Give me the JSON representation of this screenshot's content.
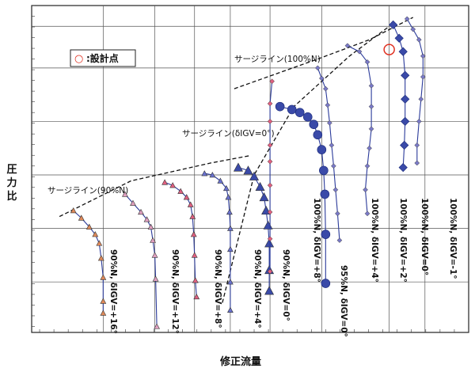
{
  "chart_data": {
    "type": "line",
    "xlabel": "修正流量",
    "ylabel": "圧力比",
    "xlim": [
      0,
      11
    ],
    "ylim": [
      0,
      11
    ],
    "grid": true,
    "legend": {
      "marker": "○",
      "label": ":設計点",
      "position": "top-left"
    },
    "design_point": {
      "x": 9.0,
      "y": 9.52
    },
    "surge_lines": [
      {
        "label": "サージライン(90%N)",
        "points": [
          [
            0.7,
            3.9
          ],
          [
            2.5,
            5.1
          ],
          [
            4.5,
            5.7
          ],
          [
            5.5,
            5.95
          ]
        ]
      },
      {
        "label": "サージライン(δIGV=0°)",
        "points": [
          [
            4.8,
            1.0
          ],
          [
            5.6,
            5.3
          ],
          [
            6.6,
            7.6
          ],
          [
            8.0,
            9.3
          ],
          [
            9.0,
            10.3
          ]
        ]
      },
      {
        "label": "サージライン(100%N)",
        "points": [
          [
            5.1,
            8.2
          ],
          [
            7.2,
            9.2
          ],
          [
            8.5,
            9.85
          ],
          [
            9.6,
            10.6
          ]
        ]
      }
    ],
    "series": [
      {
        "name": "90%N, δIGV=+16°",
        "color": "#e08a5a",
        "points": [
          [
            1.05,
            4.1
          ],
          [
            1.25,
            3.85
          ],
          [
            1.45,
            3.55
          ],
          [
            1.6,
            3.3
          ],
          [
            1.7,
            3.0
          ],
          [
            1.75,
            2.5
          ],
          [
            1.8,
            1.85
          ],
          [
            1.8,
            1.05
          ],
          [
            1.8,
            0.65
          ]
        ]
      },
      {
        "name": "90%N, δIGV=+12°",
        "color": "#e0a0c0",
        "points": [
          [
            2.35,
            4.65
          ],
          [
            2.55,
            4.35
          ],
          [
            2.75,
            4.05
          ],
          [
            2.9,
            3.8
          ],
          [
            3.0,
            3.55
          ],
          [
            3.05,
            3.1
          ],
          [
            3.1,
            2.6
          ],
          [
            3.12,
            1.8
          ],
          [
            3.15,
            0.2
          ]
        ]
      },
      {
        "name": "90%N, δIGV=+8°",
        "color": "#e06080",
        "points": [
          [
            3.35,
            5.05
          ],
          [
            3.55,
            4.95
          ],
          [
            3.75,
            4.75
          ],
          [
            3.9,
            4.55
          ],
          [
            4.0,
            4.3
          ],
          [
            4.05,
            3.9
          ],
          [
            4.08,
            3.3
          ],
          [
            4.1,
            2.6
          ],
          [
            4.12,
            1.75
          ],
          [
            4.15,
            1.2
          ]
        ]
      },
      {
        "name": "90%N, δIGV=+4°",
        "color": "#6a72d0",
        "points": [
          [
            4.35,
            5.35
          ],
          [
            4.55,
            5.3
          ],
          [
            4.75,
            5.1
          ],
          [
            4.9,
            4.85
          ],
          [
            4.95,
            4.55
          ],
          [
            4.98,
            4.05
          ],
          [
            5.0,
            3.5
          ],
          [
            5.0,
            2.8
          ],
          [
            5.0,
            1.7
          ],
          [
            5.0,
            0.75
          ]
        ]
      },
      {
        "name": "90%N, δIGV=0°",
        "color": "#3a4aa8",
        "big": true,
        "points": [
          [
            5.2,
            5.55
          ],
          [
            5.45,
            5.45
          ],
          [
            5.6,
            5.25
          ],
          [
            5.75,
            4.9
          ],
          [
            5.85,
            4.55
          ],
          [
            5.9,
            4.1
          ],
          [
            5.95,
            3.6
          ],
          [
            5.98,
            3.0
          ],
          [
            5.98,
            2.1
          ],
          [
            5.98,
            1.4
          ]
        ]
      },
      {
        "name": "100%N, δIGV=+8°",
        "color": "#e06080",
        "points": [
          [
            6.05,
            8.45
          ],
          [
            6.0,
            7.7
          ],
          [
            6.0,
            7.1
          ],
          [
            6.0,
            6.3
          ],
          [
            6.0,
            5.75
          ],
          [
            6.0,
            4.95
          ],
          [
            6.0,
            4.05
          ],
          [
            6.0,
            3.15
          ],
          [
            6.0,
            2.05
          ]
        ]
      },
      {
        "name": "95%N, δIGV=0°",
        "color": "#3a4aa8",
        "big": true,
        "points": [
          [
            6.25,
            7.6
          ],
          [
            6.55,
            7.5
          ],
          [
            6.75,
            7.4
          ],
          [
            6.95,
            7.25
          ],
          [
            7.1,
            7.0
          ],
          [
            7.2,
            6.65
          ],
          [
            7.3,
            6.15
          ],
          [
            7.35,
            5.45
          ],
          [
            7.38,
            4.65
          ],
          [
            7.4,
            3.3
          ],
          [
            7.4,
            1.65
          ]
        ]
      },
      {
        "name": "100%N, δIGV=+4°",
        "color": "#7a7ac8",
        "points": [
          [
            7.2,
            8.9
          ],
          [
            7.3,
            8.55
          ],
          [
            7.4,
            8.2
          ],
          [
            7.45,
            7.65
          ],
          [
            7.5,
            7.05
          ],
          [
            7.55,
            6.3
          ],
          [
            7.6,
            5.6
          ],
          [
            7.65,
            4.8
          ],
          [
            7.7,
            4.0
          ],
          [
            7.75,
            3.1
          ]
        ]
      },
      {
        "name": "100%N, δIGV=+2°",
        "color": "#7a7ac8",
        "points": [
          [
            7.95,
            9.65
          ],
          [
            8.25,
            9.45
          ],
          [
            8.45,
            9.1
          ],
          [
            8.55,
            8.3
          ],
          [
            8.55,
            7.6
          ],
          [
            8.55,
            6.85
          ],
          [
            8.5,
            6.2
          ],
          [
            8.45,
            5.6
          ],
          [
            8.4,
            4.8
          ],
          [
            8.45,
            4.0
          ]
        ]
      },
      {
        "name": "100%N, δIGV=0°",
        "color": "#3a4aa8",
        "big": true,
        "points": [
          [
            9.1,
            10.35
          ],
          [
            9.25,
            9.9
          ],
          [
            9.35,
            9.45
          ],
          [
            9.4,
            8.65
          ],
          [
            9.4,
            7.85
          ],
          [
            9.4,
            7.1
          ],
          [
            9.38,
            6.3
          ],
          [
            9.35,
            5.55
          ]
        ]
      },
      {
        "name": "100%N, δIGV=-1°",
        "color": "#7a7ac8",
        "points": [
          [
            9.45,
            10.55
          ],
          [
            9.6,
            10.2
          ],
          [
            9.75,
            9.85
          ],
          [
            9.85,
            9.3
          ],
          [
            9.85,
            8.6
          ],
          [
            9.8,
            7.85
          ],
          [
            9.75,
            7.1
          ],
          [
            9.7,
            6.3
          ],
          [
            9.7,
            5.7
          ]
        ]
      }
    ],
    "annotations": [
      {
        "text": "90%N, δIGV=+16°"
      },
      {
        "text": "90%N, δIGV=+12°"
      },
      {
        "text": "90%N, δIGV=+8°"
      },
      {
        "text": "90%N, δIGV=+4°"
      },
      {
        "text": "90%N, δIGV=0°"
      },
      {
        "text": "100%N, δIGV=+8°"
      },
      {
        "text": "95%N, δIGV=0°"
      },
      {
        "text": "100%N, δIGV=+4°"
      },
      {
        "text": "100%N, δIGV=+2°"
      },
      {
        "text": "100%N, δIGV=0°"
      },
      {
        "text": "100%N, δIGV=-1°"
      }
    ]
  }
}
